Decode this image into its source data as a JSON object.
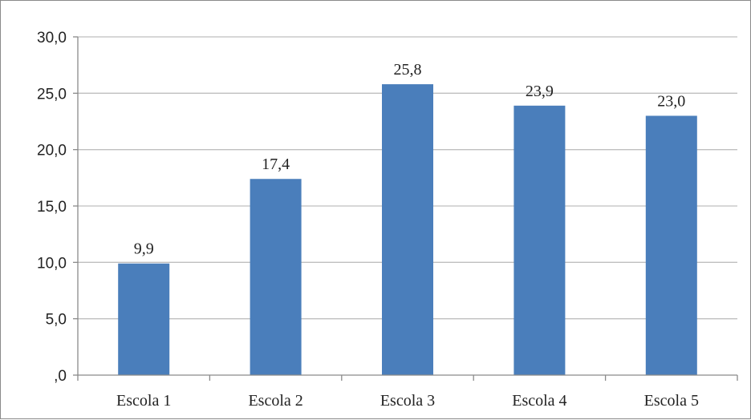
{
  "chart_data": {
    "type": "bar",
    "title": "",
    "xlabel": "",
    "ylabel": "",
    "categories": [
      "Escola 1",
      "Escola 2",
      "Escola 3",
      "Escola 4",
      "Escola 5"
    ],
    "values": [
      9.9,
      17.4,
      25.8,
      23.9,
      23.0
    ],
    "value_labels": [
      "9,9",
      "17,4",
      "25,8",
      "23,9",
      "23,0"
    ],
    "ylim": [
      0,
      30
    ],
    "yticks": [
      0,
      5,
      10,
      15,
      20,
      25,
      30
    ],
    "ytick_labels": [
      ",0",
      "5,0",
      "10,0",
      "15,0",
      "20,0",
      "25,0",
      "30,0"
    ],
    "grid": true,
    "legend": "none",
    "bar_color": "#4a7ebb",
    "grid_color": "#bfbfbf"
  }
}
